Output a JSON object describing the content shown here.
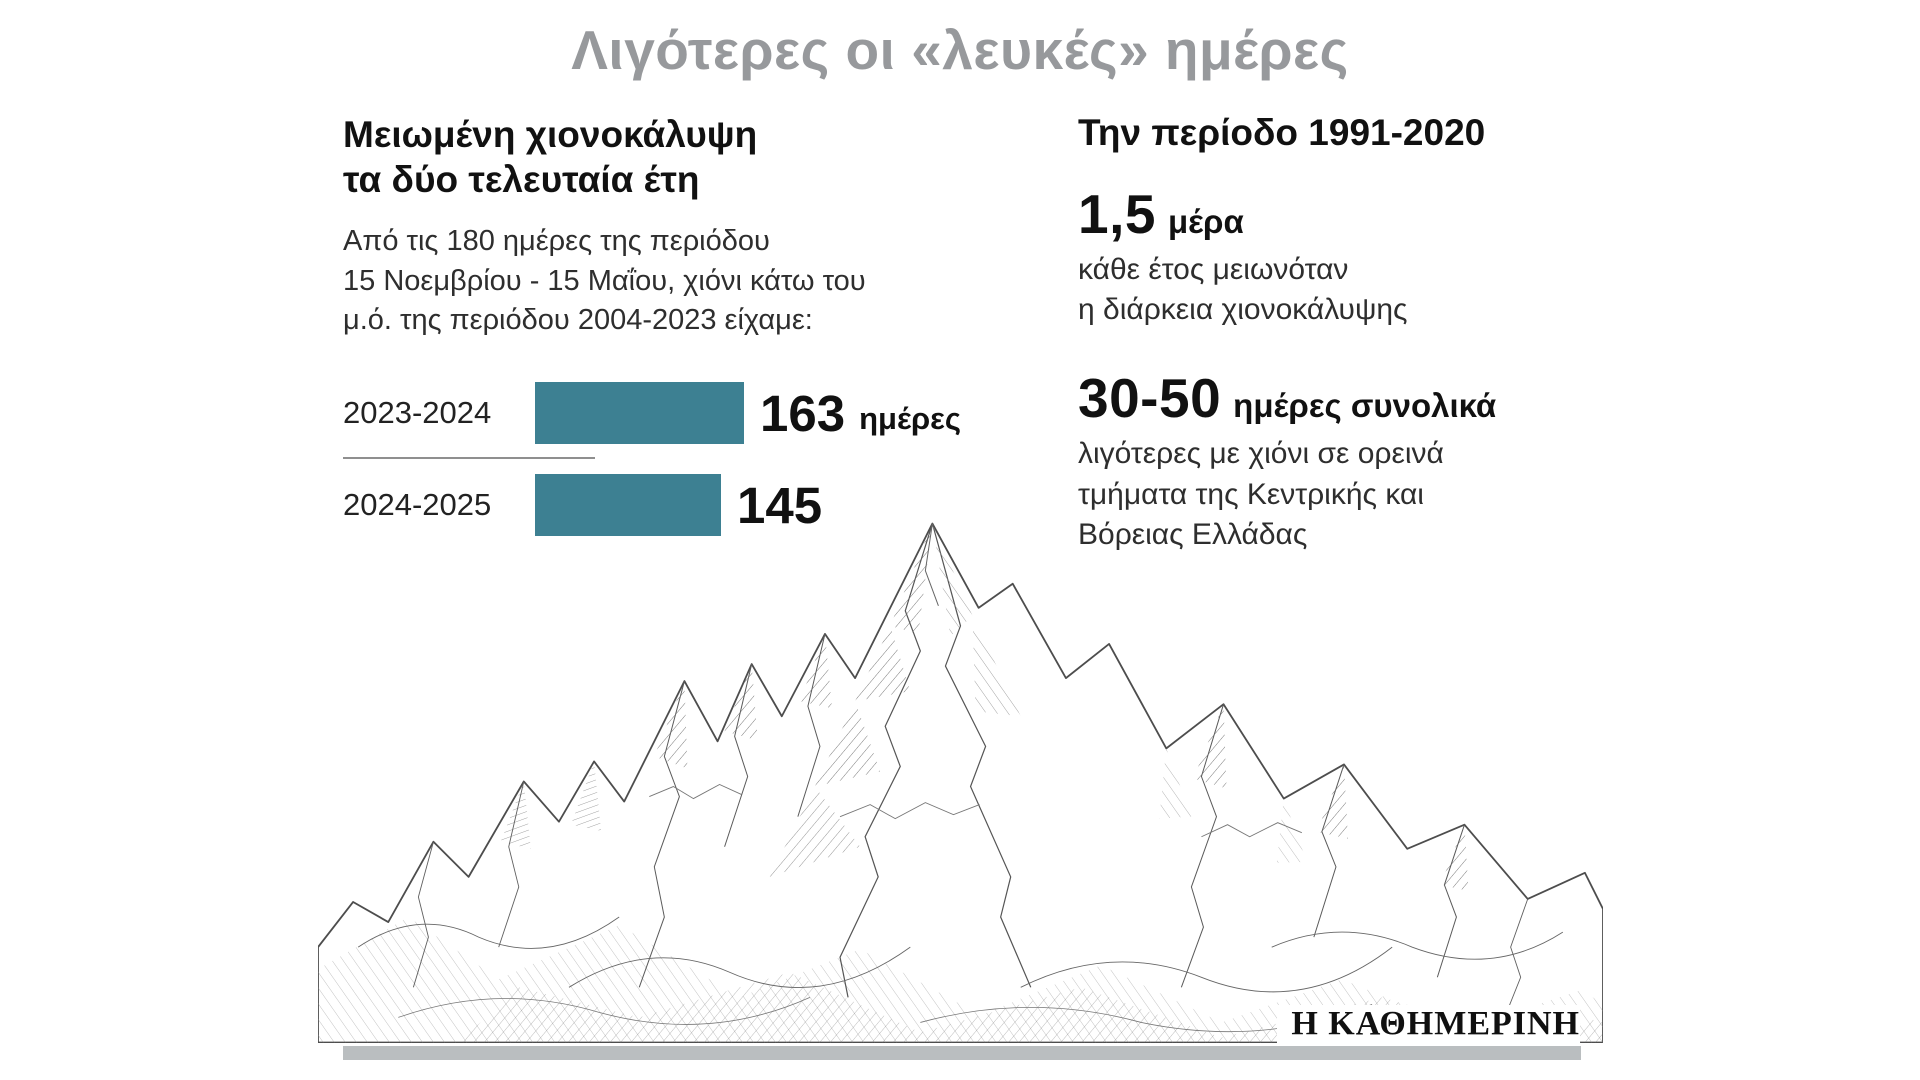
{
  "title": "Λιγότερες οι «λευκές» ημέρες",
  "left": {
    "heading_lines": [
      "Μειωμένη χιονοκάλυψη",
      "τα δύο τελευταία έτη"
    ],
    "intro_lines": [
      "Από τις 180 ημέρες της περιόδου",
      "15 Νοεμβρίου - 15 Μαΐου, χιόνι κάτω του",
      "μ.ό. της περιόδου 2004-2023 είχαμε:"
    ]
  },
  "chart_data": {
    "type": "bar",
    "categories": [
      "2023-2024",
      "2024-2025"
    ],
    "values": [
      163,
      145
    ],
    "unit_label": "ημέρες",
    "title": "Μειωμένη χιονοκάλυψη τα δύο τελευταία έτη",
    "xlabel": "",
    "ylabel": "",
    "xlim": [
      0,
      180
    ],
    "orientation": "horizontal",
    "bar_color": "#3D8092",
    "grid": false,
    "legend": "none"
  },
  "right": {
    "heading": "Την περίοδο 1991-2020",
    "stat1": {
      "value": "1,5",
      "unit": "μέρα",
      "desc_lines": [
        "κάθε έτος μειωνόταν",
        "η διάρκεια χιονοκάλυψης"
      ]
    },
    "stat2": {
      "value": "30-50",
      "unit": "ημέρες συνολικά",
      "desc_lines": [
        "λιγότερες με χιόνι σε ορεινά",
        "τμήματα της Κεντρικής και",
        "Βόρειας Ελλάδας"
      ]
    }
  },
  "footer": {
    "brand": "Η ΚΑΘΗΜΕΡΙΝΗ"
  }
}
